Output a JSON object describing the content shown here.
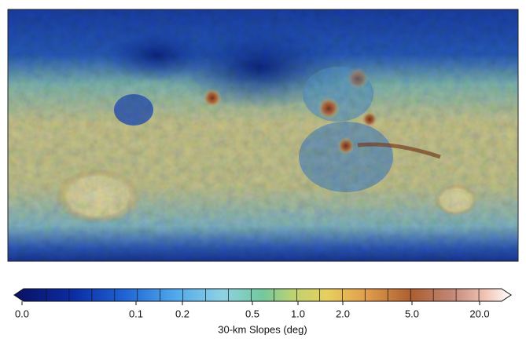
{
  "map": {
    "colorbar": {
      "label": "30-km Slopes (deg)",
      "ticks": [
        {
          "value": 0,
          "label": "0.0"
        },
        0.1,
        0.2,
        0.5,
        {
          "value": 1,
          "label": "1.0"
        },
        {
          "value": 2,
          "label": "2.0"
        },
        {
          "value": 5,
          "label": "5.0"
        },
        {
          "value": 20,
          "label": "20.0"
        }
      ]
    }
  }
}
